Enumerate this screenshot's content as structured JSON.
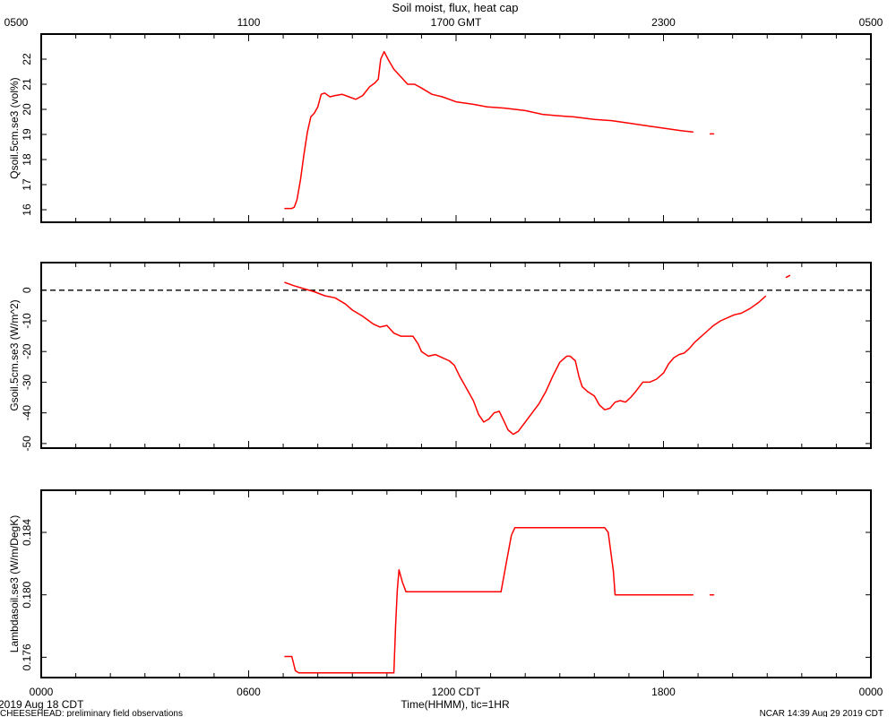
{
  "title": "Soil moist, flux, heat cap",
  "top_axis_labels": [
    "0500",
    "1100",
    "1700 GMT",
    "2300",
    "0500"
  ],
  "bottom_axis_labels": [
    "0000",
    "0600",
    "1200 CDT",
    "1800",
    "0000"
  ],
  "xlabel": "Time(HHMM), tic=1HR",
  "date_label": "2019 Aug 18 CDT",
  "footer_left": "CHEESEHEAD: preliminary field observations",
  "footer_right": "NCAR 14:39 Aug 29 2019 CDT",
  "colors": {
    "series": "#ff0000",
    "axes": "#000000",
    "background": "#ffffff"
  },
  "chart_data": [
    {
      "type": "line",
      "ylabel": "Qsoil.5cm.se3 (vol%)",
      "xlim": [
        0,
        24
      ],
      "ylim": [
        15.5,
        23.0
      ],
      "yticks": [
        16,
        17,
        18,
        19,
        20,
        21,
        22
      ],
      "series": [
        {
          "segments": [
            [
              [
                7.05,
                16.05
              ],
              [
                7.25,
                16.05
              ],
              [
                7.32,
                16.1
              ],
              [
                7.4,
                16.4
              ],
              [
                7.5,
                17.2
              ],
              [
                7.6,
                18.2
              ],
              [
                7.7,
                19.1
              ],
              [
                7.8,
                19.7
              ],
              [
                7.9,
                19.85
              ],
              [
                8.0,
                20.1
              ],
              [
                8.1,
                20.6
              ],
              [
                8.2,
                20.65
              ],
              [
                8.35,
                20.5
              ],
              [
                8.5,
                20.55
              ],
              [
                8.7,
                20.6
              ],
              [
                8.9,
                20.5
              ],
              [
                9.1,
                20.4
              ],
              [
                9.3,
                20.55
              ],
              [
                9.5,
                20.9
              ],
              [
                9.65,
                21.05
              ],
              [
                9.75,
                21.2
              ],
              [
                9.82,
                22.0
              ],
              [
                9.92,
                22.3
              ],
              [
                10.05,
                21.95
              ],
              [
                10.2,
                21.6
              ],
              [
                10.4,
                21.3
              ],
              [
                10.6,
                21.0
              ],
              [
                10.8,
                21.0
              ],
              [
                11.0,
                20.85
              ],
              [
                11.3,
                20.6
              ],
              [
                11.6,
                20.5
              ],
              [
                12.0,
                20.3
              ],
              [
                12.5,
                20.2
              ],
              [
                12.9,
                20.1
              ],
              [
                13.4,
                20.05
              ],
              [
                14.0,
                19.95
              ],
              [
                14.5,
                19.8
              ],
              [
                14.9,
                19.75
              ],
              [
                15.4,
                19.7
              ],
              [
                16.0,
                19.6
              ],
              [
                16.5,
                19.55
              ],
              [
                17.0,
                19.45
              ],
              [
                17.5,
                19.35
              ],
              [
                18.0,
                19.25
              ],
              [
                18.5,
                19.15
              ],
              [
                18.85,
                19.1
              ]
            ],
            [
              [
                19.35,
                19.02
              ],
              [
                19.45,
                19.02
              ]
            ]
          ]
        }
      ]
    },
    {
      "type": "line",
      "ylabel": "Gsoil.5cm.se3 (W/m^2)",
      "xlim": [
        0,
        24
      ],
      "ylim": [
        -51.5,
        9.0
      ],
      "yticks": [
        0,
        -10,
        -20,
        -30,
        -40,
        -50
      ],
      "hline": {
        "y": 0,
        "style": "dashed"
      },
      "series": [
        {
          "segments": [
            [
              [
                7.05,
                2.5
              ],
              [
                7.3,
                1.5
              ],
              [
                7.6,
                0.5
              ],
              [
                7.9,
                -0.5
              ],
              [
                8.2,
                -1.8
              ],
              [
                8.5,
                -2.5
              ],
              [
                8.8,
                -4.5
              ],
              [
                9.0,
                -6.5
              ],
              [
                9.3,
                -8.5
              ],
              [
                9.6,
                -11.0
              ],
              [
                9.8,
                -12.0
              ],
              [
                10.0,
                -11.5
              ],
              [
                10.2,
                -14.0
              ],
              [
                10.4,
                -15.0
              ],
              [
                10.6,
                -15.0
              ],
              [
                10.75,
                -15.0
              ],
              [
                10.9,
                -17.5
              ],
              [
                11.0,
                -20.0
              ],
              [
                11.2,
                -21.5
              ],
              [
                11.4,
                -21.0
              ],
              [
                11.6,
                -22.0
              ],
              [
                11.8,
                -23.0
              ],
              [
                11.95,
                -24.5
              ],
              [
                12.1,
                -28.0
              ],
              [
                12.3,
                -32.0
              ],
              [
                12.5,
                -36.0
              ],
              [
                12.65,
                -40.5
              ],
              [
                12.8,
                -43.0
              ],
              [
                12.95,
                -42.0
              ],
              [
                13.1,
                -40.0
              ],
              [
                13.25,
                -39.5
              ],
              [
                13.4,
                -43.0
              ],
              [
                13.5,
                -45.5
              ],
              [
                13.65,
                -47.0
              ],
              [
                13.8,
                -46.0
              ],
              [
                14.0,
                -43.0
              ],
              [
                14.2,
                -40.0
              ],
              [
                14.4,
                -37.0
              ],
              [
                14.6,
                -33.0
              ],
              [
                14.8,
                -28.0
              ],
              [
                15.0,
                -23.5
              ],
              [
                15.2,
                -21.5
              ],
              [
                15.3,
                -21.5
              ],
              [
                15.45,
                -23.0
              ],
              [
                15.55,
                -28.0
              ],
              [
                15.65,
                -31.5
              ],
              [
                15.8,
                -33.0
              ],
              [
                16.0,
                -34.5
              ],
              [
                16.15,
                -37.5
              ],
              [
                16.3,
                -39.0
              ],
              [
                16.45,
                -38.5
              ],
              [
                16.6,
                -36.5
              ],
              [
                16.75,
                -36.0
              ],
              [
                16.9,
                -36.5
              ],
              [
                17.05,
                -35.0
              ],
              [
                17.2,
                -33.0
              ],
              [
                17.4,
                -30.0
              ],
              [
                17.6,
                -30.0
              ],
              [
                17.8,
                -29.0
              ],
              [
                18.0,
                -27.0
              ],
              [
                18.15,
                -24.0
              ],
              [
                18.3,
                -22.0
              ],
              [
                18.45,
                -21.0
              ],
              [
                18.6,
                -20.5
              ],
              [
                18.75,
                -19.0
              ],
              [
                18.9,
                -17.0
              ],
              [
                19.05,
                -15.5
              ],
              [
                19.25,
                -13.5
              ],
              [
                19.45,
                -11.5
              ],
              [
                19.65,
                -10.0
              ],
              [
                19.85,
                -9.0
              ],
              [
                20.05,
                -8.0
              ],
              [
                20.25,
                -7.5
              ],
              [
                20.5,
                -6.0
              ],
              [
                20.75,
                -4.0
              ],
              [
                20.95,
                -2.0
              ]
            ],
            [
              [
                21.55,
                4.2
              ],
              [
                21.65,
                4.8
              ]
            ]
          ]
        }
      ]
    },
    {
      "type": "line",
      "ylabel": "Lambdasoil.se3 (W/m/DegK)",
      "xlim": [
        0,
        24
      ],
      "ylim": [
        0.1747,
        0.1867
      ],
      "yticks": [
        0.176,
        0.18,
        0.184
      ],
      "ytick_labels": [
        "0.176",
        "0.180",
        "0.184"
      ],
      "series": [
        {
          "segments": [
            [
              [
                7.05,
                0.17605
              ],
              [
                7.25,
                0.17605
              ],
              [
                7.35,
                0.17515
              ],
              [
                7.45,
                0.175
              ],
              [
                10.2,
                0.175
              ],
              [
                10.25,
                0.178
              ],
              [
                10.3,
                0.1803
              ],
              [
                10.35,
                0.1816
              ],
              [
                10.45,
                0.1808
              ],
              [
                10.55,
                0.1802
              ],
              [
                13.0,
                0.1802
              ],
              [
                13.3,
                0.1802
              ],
              [
                13.45,
                0.182
              ],
              [
                13.6,
                0.1838
              ],
              [
                13.7,
                0.1843
              ],
              [
                14.0,
                0.1843
              ],
              [
                16.3,
                0.1843
              ],
              [
                16.4,
                0.184
              ],
              [
                16.55,
                0.1815
              ],
              [
                16.6,
                0.18
              ],
              [
                16.8,
                0.18
              ],
              [
                18.85,
                0.18
              ]
            ],
            [
              [
                19.35,
                0.18
              ],
              [
                19.45,
                0.18
              ]
            ]
          ]
        }
      ]
    }
  ]
}
